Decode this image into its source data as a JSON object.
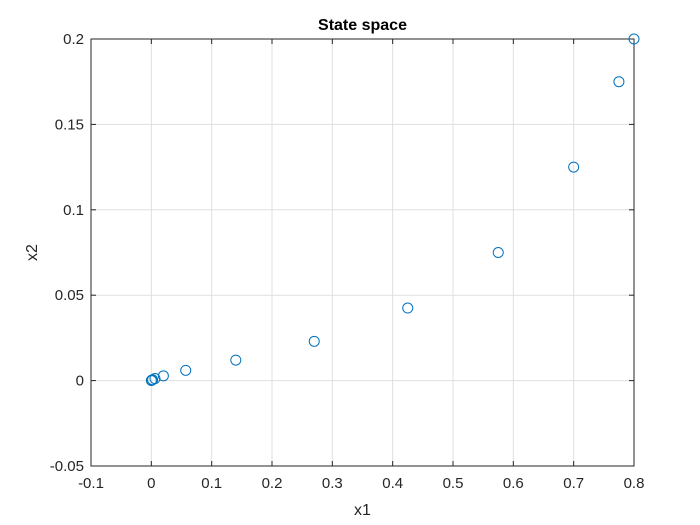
{
  "chart_data": {
    "type": "scatter",
    "title": "State space",
    "xlabel": "x1",
    "ylabel": "x2",
    "xlim": [
      -0.1,
      0.8
    ],
    "ylim": [
      -0.05,
      0.2
    ],
    "xticks": [
      -0.1,
      0,
      0.1,
      0.2,
      0.3,
      0.4,
      0.5,
      0.6,
      0.7,
      0.8
    ],
    "yticks": [
      -0.05,
      0,
      0.05,
      0.1,
      0.15,
      0.2
    ],
    "xtick_labels": [
      "-0.1",
      "0",
      "0.1",
      "0.2",
      "0.3",
      "0.4",
      "0.5",
      "0.6",
      "0.7",
      "0.8"
    ],
    "ytick_labels": [
      "-0.05",
      "0",
      "0.05",
      "0.1",
      "0.15",
      "0.2"
    ],
    "grid": true,
    "marker": "open-circle",
    "marker_color": "#0072bd",
    "series": [
      {
        "x": [
          0.8,
          0.775,
          0.7,
          0.575,
          0.425,
          0.27,
          0.14,
          0.057,
          0.02,
          0.006,
          0.002,
          0.0005,
          0.0001
        ],
        "y": [
          0.2,
          0.175,
          0.125,
          0.075,
          0.0425,
          0.023,
          0.012,
          0.006,
          0.0028,
          0.0012,
          0.0005,
          0.0002,
          5e-05
        ]
      }
    ]
  }
}
